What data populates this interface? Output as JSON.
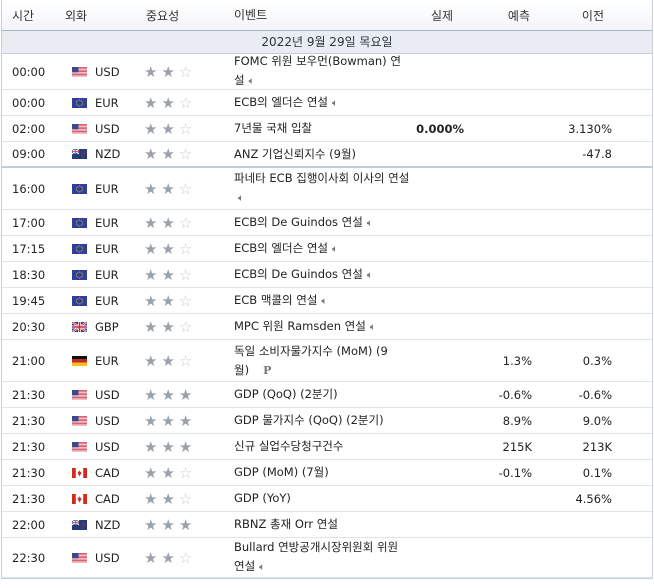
{
  "headers": {
    "time": "시간",
    "currency": "외화",
    "importance": "중요성",
    "event": "이벤트",
    "actual": "실제",
    "forecast": "예측",
    "previous": "이전"
  },
  "date_band": "2022년 9월 29일 목요일",
  "colors": {
    "band_bg": "#e9edf3",
    "star_on": "#9aa1a8",
    "star_off": "#c8ccd1"
  },
  "rows": [
    {
      "time": "00:00",
      "flag": "us",
      "currency": "USD",
      "stars": 2,
      "event": "FOMC 위원 보우먼(Bowman) 연설",
      "speech": true,
      "actual": "",
      "forecast": "",
      "previous": "",
      "h": 36
    },
    {
      "time": "00:00",
      "flag": "eu",
      "currency": "EUR",
      "stars": 2,
      "event": "ECB의 엘더슨 연설",
      "speech": true,
      "actual": "",
      "forecast": "",
      "previous": "",
      "h": 26
    },
    {
      "time": "02:00",
      "flag": "us",
      "currency": "USD",
      "stars": 2,
      "event": "7년물 국채 입찰",
      "speech": false,
      "actual": "0.000%",
      "actual_bold": true,
      "forecast": "",
      "previous": "3.130%",
      "h": 26
    },
    {
      "time": "09:00",
      "flag": "nz",
      "currency": "NZD",
      "stars": 2,
      "event": "ANZ 기업신뢰지수 (9월)",
      "speech": false,
      "actual": "",
      "forecast": "",
      "previous": "-47.8",
      "h": 26,
      "thick": true
    },
    {
      "time": "16:00",
      "flag": "eu",
      "currency": "EUR",
      "stars": 2,
      "event": "파네타 ECB 집행이사회 이사의 연설",
      "speech": true,
      "actual": "",
      "forecast": "",
      "previous": "",
      "h": 42
    },
    {
      "time": "17:00",
      "flag": "eu",
      "currency": "EUR",
      "stars": 2,
      "event": "ECB의 De Guindos 연설",
      "speech": true,
      "actual": "",
      "forecast": "",
      "previous": "",
      "h": 26
    },
    {
      "time": "17:15",
      "flag": "eu",
      "currency": "EUR",
      "stars": 2,
      "event": "ECB의 엘더슨 연설",
      "speech": true,
      "actual": "",
      "forecast": "",
      "previous": "",
      "h": 26
    },
    {
      "time": "18:30",
      "flag": "eu",
      "currency": "EUR",
      "stars": 2,
      "event": "ECB의 De Guindos 연설",
      "speech": true,
      "actual": "",
      "forecast": "",
      "previous": "",
      "h": 26
    },
    {
      "time": "19:45",
      "flag": "eu",
      "currency": "EUR",
      "stars": 2,
      "event": "ECB 맥콜의 연설",
      "speech": true,
      "actual": "",
      "forecast": "",
      "previous": "",
      "h": 26
    },
    {
      "time": "20:30",
      "flag": "gb",
      "currency": "GBP",
      "stars": 2,
      "event": "MPC 위원 Ramsden 연설",
      "speech": true,
      "actual": "",
      "forecast": "",
      "previous": "",
      "h": 26
    },
    {
      "time": "21:00",
      "flag": "de",
      "currency": "EUR",
      "stars": 2,
      "event": "독일 소비자물가지수 (MoM) (9월)",
      "speech": false,
      "pmark": "P",
      "actual": "",
      "forecast": "1.3%",
      "previous": "0.3%",
      "h": 42
    },
    {
      "time": "21:30",
      "flag": "us",
      "currency": "USD",
      "stars": 3,
      "event": "GDP (QoQ) (2분기)",
      "speech": false,
      "actual": "",
      "forecast": "-0.6%",
      "previous": "-0.6%",
      "h": 26
    },
    {
      "time": "21:30",
      "flag": "us",
      "currency": "USD",
      "stars": 3,
      "event": "GDP 물가지수 (QoQ) (2분기)",
      "speech": false,
      "actual": "",
      "forecast": "8.9%",
      "previous": "9.0%",
      "h": 26
    },
    {
      "time": "21:30",
      "flag": "us",
      "currency": "USD",
      "stars": 3,
      "event": "신규 실업수당청구건수",
      "speech": false,
      "actual": "",
      "forecast": "215K",
      "previous": "213K",
      "h": 26
    },
    {
      "time": "21:30",
      "flag": "ca",
      "currency": "CAD",
      "stars": 2,
      "event": "GDP (MoM) (7월)",
      "speech": false,
      "actual": "",
      "forecast": "-0.1%",
      "previous": "0.1%",
      "h": 26
    },
    {
      "time": "21:30",
      "flag": "ca",
      "currency": "CAD",
      "stars": 2,
      "event": "GDP (YoY)",
      "speech": false,
      "actual": "",
      "forecast": "",
      "previous": "4.56%",
      "h": 26
    },
    {
      "time": "22:00",
      "flag": "nz",
      "currency": "NZD",
      "stars": 3,
      "event": "RBNZ 총재 Orr 연설",
      "speech": false,
      "actual": "",
      "forecast": "",
      "previous": "",
      "h": 26
    },
    {
      "time": "22:30",
      "flag": "us",
      "currency": "USD",
      "stars": 2,
      "event": "Bullard 연방공개시장위원회 위원 연설",
      "speech": true,
      "actual": "",
      "forecast": "",
      "previous": "",
      "h": 40
    }
  ]
}
